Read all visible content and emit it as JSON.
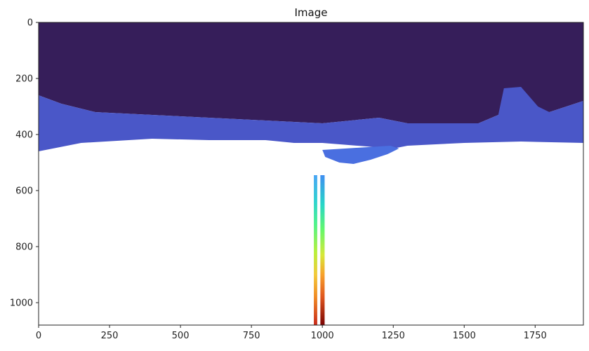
{
  "chart_data": {
    "type": "heatmap",
    "title": "Image",
    "xlabel": "",
    "ylabel": "",
    "image_size": [
      1920,
      1080
    ],
    "xlim": [
      0,
      1920
    ],
    "ylim": [
      1080,
      0
    ],
    "x_ticks": [
      0,
      250,
      500,
      750,
      1000,
      1250,
      1500,
      1750
    ],
    "y_ticks": [
      0,
      200,
      400,
      600,
      800,
      1000
    ],
    "x_tick_labels": [
      "0",
      "250",
      "500",
      "750",
      "1000",
      "1250",
      "1500",
      "1750"
    ],
    "y_tick_labels": [
      "0",
      "200",
      "400",
      "600",
      "800",
      "1000"
    ],
    "colormap": "turbo",
    "background": "white (no data)",
    "regions": [
      {
        "name": "dark-upper-region",
        "color": "#361e5a",
        "description_units": "pixel coordinates of image",
        "bounds": [
          [
            0,
            0
          ],
          [
            1920,
            0
          ],
          [
            1920,
            280
          ],
          [
            1800,
            320
          ],
          [
            1700,
            300
          ],
          [
            1620,
            330
          ],
          [
            1550,
            360
          ],
          [
            1300,
            360
          ],
          [
            1200,
            340
          ],
          [
            1000,
            360
          ],
          [
            800,
            350
          ],
          [
            600,
            340
          ],
          [
            400,
            330
          ],
          [
            200,
            320
          ],
          [
            80,
            290
          ],
          [
            0,
            260
          ]
        ]
      },
      {
        "name": "blue-band",
        "color": "#4a57c8",
        "bounds": [
          [
            0,
            260
          ],
          [
            80,
            290
          ],
          [
            200,
            320
          ],
          [
            400,
            330
          ],
          [
            600,
            340
          ],
          [
            800,
            350
          ],
          [
            1000,
            360
          ],
          [
            1200,
            340
          ],
          [
            1300,
            360
          ],
          [
            1550,
            360
          ],
          [
            1620,
            330
          ],
          [
            1640,
            235
          ],
          [
            1700,
            230
          ],
          [
            1760,
            300
          ],
          [
            1800,
            320
          ],
          [
            1920,
            280
          ],
          [
            1920,
            430
          ],
          [
            1700,
            425
          ],
          [
            1500,
            430
          ],
          [
            1300,
            440
          ],
          [
            1250,
            450
          ],
          [
            1000,
            430
          ],
          [
            900,
            430
          ],
          [
            800,
            420
          ],
          [
            600,
            420
          ],
          [
            400,
            415
          ],
          [
            150,
            430
          ],
          [
            0,
            460
          ]
        ]
      },
      {
        "name": "blue-lower-patch",
        "color": "#4a6fe0",
        "bounds": [
          [
            1000,
            455
          ],
          [
            1080,
            450
          ],
          [
            1160,
            445
          ],
          [
            1240,
            440
          ],
          [
            1270,
            450
          ],
          [
            1230,
            470
          ],
          [
            1170,
            490
          ],
          [
            1110,
            505
          ],
          [
            1060,
            500
          ],
          [
            1010,
            480
          ]
        ]
      }
    ],
    "vertical_strips": [
      {
        "name": "left-strip",
        "x_range": [
          970,
          982
        ],
        "y_range": [
          545,
          1080
        ],
        "color_stops": [
          {
            "y": 545,
            "color": "#4aa5f5"
          },
          {
            "y": 640,
            "color": "#2fd3d0"
          },
          {
            "y": 720,
            "color": "#4ef38a"
          },
          {
            "y": 820,
            "color": "#b8f03a"
          },
          {
            "y": 900,
            "color": "#f3c93a"
          },
          {
            "y": 980,
            "color": "#f08a24"
          },
          {
            "y": 1080,
            "color": "#c8281a"
          }
        ]
      },
      {
        "name": "right-strip",
        "x_range": [
          993,
          1008
        ],
        "y_range": [
          545,
          1080
        ],
        "color_stops": [
          {
            "y": 545,
            "color": "#3f8ef2"
          },
          {
            "y": 650,
            "color": "#27d6c8"
          },
          {
            "y": 740,
            "color": "#63f86b"
          },
          {
            "y": 830,
            "color": "#d7e838"
          },
          {
            "y": 900,
            "color": "#f8a12b"
          },
          {
            "y": 980,
            "color": "#e0561e"
          },
          {
            "y": 1080,
            "color": "#7a0403"
          }
        ]
      }
    ]
  }
}
